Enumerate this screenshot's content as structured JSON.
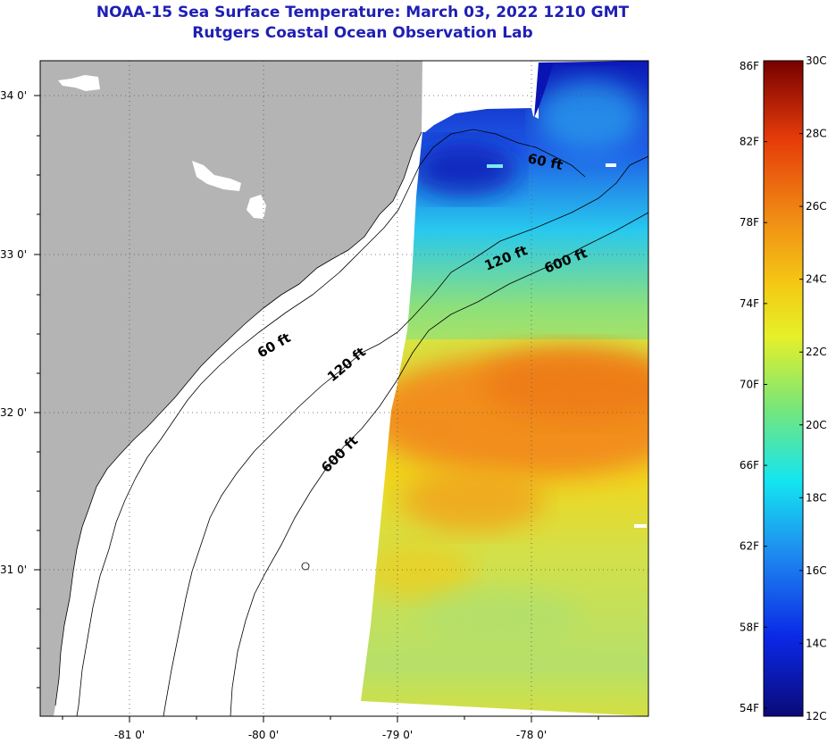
{
  "header": {
    "title_line1": "NOAA-15 Sea Surface Temperature:  March 03, 2022 1210 GMT",
    "title_line2": "Rutgers Coastal Ocean Observation Lab"
  },
  "map": {
    "lat_ticks": [
      "34 0'",
      "33 0'",
      "32 0'",
      "31 0'"
    ],
    "lon_ticks": [
      "-81 0'",
      "-80 0'",
      "-79 0'",
      "-78 0'"
    ],
    "contours": {
      "c60_north": "60 ft",
      "c120_north": "120 ft",
      "c600_north": "600 ft",
      "c60_south": "60 ft",
      "c120_south": "120 ft",
      "c600_south": "600 ft"
    },
    "colors": {
      "land": "#b4b4b4",
      "warm_core": "#f28a1c",
      "mid": "#f2d21a",
      "cool": "#0a1ec8"
    }
  },
  "colorbar": {
    "fahrenheit_labels": [
      "86F",
      "82F",
      "78F",
      "74F",
      "70F",
      "66F",
      "62F",
      "58F",
      "54F"
    ],
    "celsius_labels": [
      "30C",
      "28C",
      "26C",
      "24C",
      "22C",
      "20C",
      "18C",
      "16C",
      "14C",
      "12C"
    ],
    "range_c": [
      12,
      30
    ],
    "range_f": [
      54,
      86
    ]
  }
}
